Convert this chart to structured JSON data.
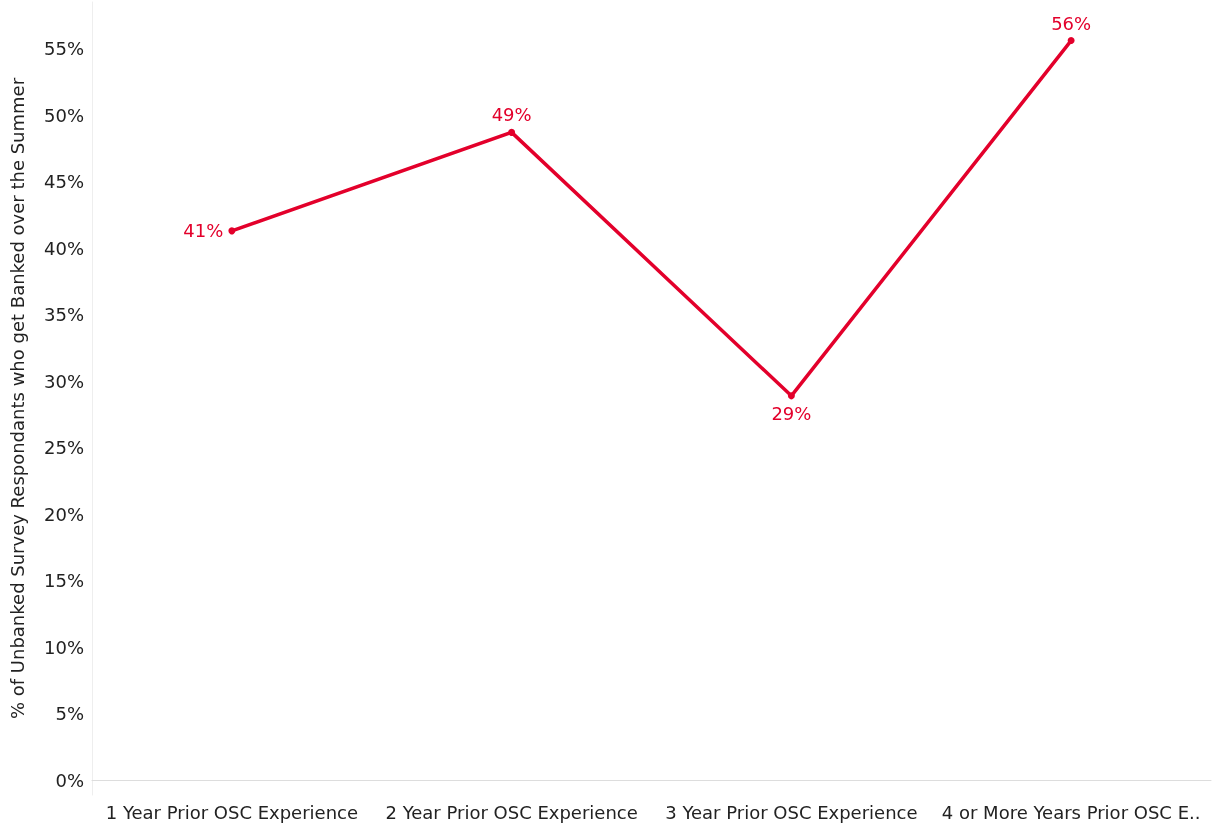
{
  "chart_data": {
    "type": "line",
    "ylabel": "% of Unbanked Survey Respondants who get Banked over the Summer",
    "categories": [
      "1 Year Prior OSC Experience",
      "2 Year Prior OSC Experience",
      "3 Year Prior OSC Experience",
      "4 or More Years Prior OSC E.."
    ],
    "series": [
      {
        "color": "#e3002b",
        "values": [
          41.3,
          48.7,
          28.9,
          55.6
        ],
        "value_labels": [
          "41%",
          "49%",
          "29%",
          "56%"
        ]
      }
    ],
    "ylim": [
      -1.1,
      58.5
    ],
    "yticks": [
      {
        "value": 0,
        "label": "0%"
      },
      {
        "value": 5,
        "label": "5%"
      },
      {
        "value": 10,
        "label": "10%"
      },
      {
        "value": 15,
        "label": "15%"
      },
      {
        "value": 20,
        "label": "20%"
      },
      {
        "value": 25,
        "label": "25%"
      },
      {
        "value": 30,
        "label": "30%"
      },
      {
        "value": 35,
        "label": "35%"
      },
      {
        "value": 40,
        "label": "40%"
      },
      {
        "value": 45,
        "label": "45%"
      },
      {
        "value": 50,
        "label": "50%"
      },
      {
        "value": 55,
        "label": "55%"
      }
    ],
    "marker": "circle",
    "line_style": "solid"
  }
}
